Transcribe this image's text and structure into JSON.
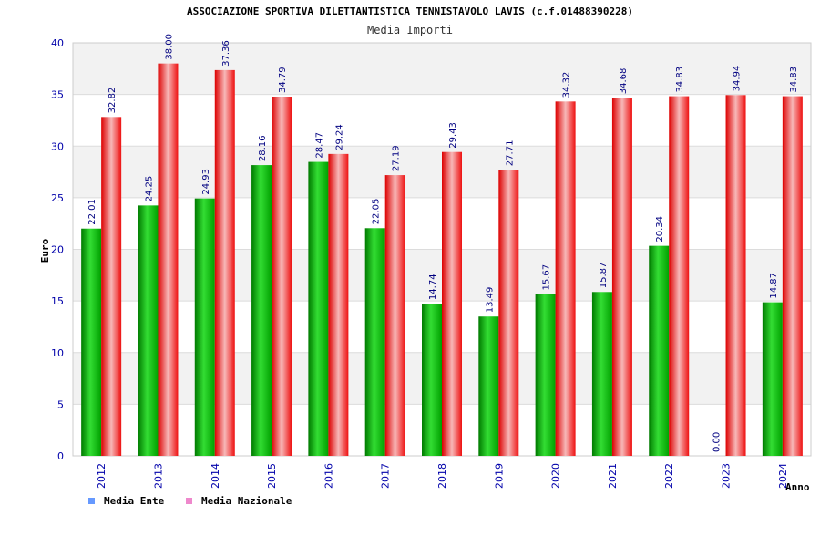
{
  "chart_data": {
    "type": "bar",
    "title": "ASSOCIAZIONE SPORTIVA DILETTANTISTICA TENNISTAVOLO LAVIS (c.f.01488390228)",
    "subtitle": "Media Importi",
    "xlabel": "Anno",
    "ylabel": "Euro",
    "ylim": [
      0,
      40
    ],
    "ytick_step": 5,
    "grid": true,
    "legend_position": "bottom-left",
    "categories": [
      "2012",
      "2013",
      "2014",
      "2015",
      "2016",
      "2017",
      "2018",
      "2019",
      "2020",
      "2021",
      "2022",
      "2023",
      "2024"
    ],
    "series": [
      {
        "name": "Media Ente",
        "color": "#00bb00",
        "legend_color": "#6699ff",
        "values": [
          22.01,
          24.25,
          24.93,
          28.16,
          28.47,
          22.05,
          14.74,
          13.49,
          15.67,
          15.87,
          20.34,
          0.0,
          14.87
        ],
        "labels": [
          "22.01",
          "24.25",
          "24.93",
          "28.16",
          "28.47",
          "22.05",
          "14.74",
          "13.49",
          "15.67",
          "15.87",
          "20.34",
          "0.00",
          "14.87"
        ]
      },
      {
        "name": "Media Nazionale",
        "color": "#ee1111",
        "legend_color": "#ee88cc",
        "values": [
          32.82,
          38.0,
          37.36,
          34.79,
          29.24,
          27.19,
          29.43,
          27.71,
          34.32,
          34.68,
          34.83,
          34.94,
          34.83
        ],
        "labels": [
          "32.82",
          "38.00",
          "37.36",
          "34.79",
          "29.24",
          "27.19",
          "29.43",
          "27.71",
          "34.32",
          "34.68",
          "34.83",
          "34.94",
          "34.83"
        ]
      }
    ]
  }
}
